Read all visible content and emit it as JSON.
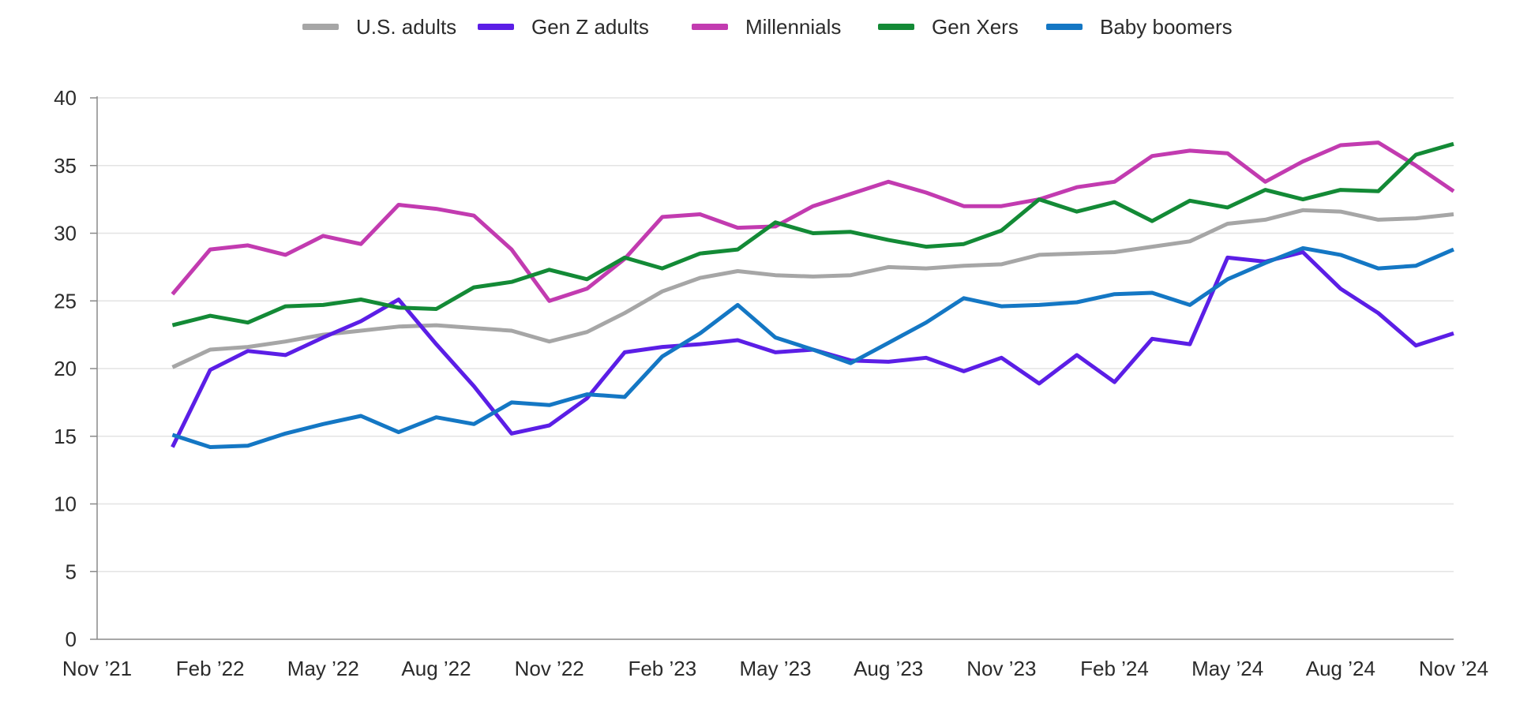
{
  "chart_data": {
    "type": "line",
    "title": "",
    "xlabel": "",
    "ylabel": "",
    "ylim": [
      0,
      40
    ],
    "yticks": [
      0,
      5,
      10,
      15,
      20,
      25,
      30,
      35,
      40
    ],
    "xlim": [
      "Nov '21",
      "Nov '24"
    ],
    "xtick_labels": [
      "Nov ’21",
      "Feb ’22",
      "May ’22",
      "Aug ’22",
      "Nov ’22",
      "Feb ’23",
      "May ’23",
      "Aug ’23",
      "Nov ’23",
      "Feb ’24",
      "May ’24",
      "Aug ’24",
      "Nov ’24"
    ],
    "grid": true,
    "legend_position": "top-center",
    "x": [
      "Jan '22",
      "Feb '22",
      "Mar '22",
      "Apr '22",
      "May '22",
      "Jun '22",
      "Jul '22",
      "Aug '22",
      "Sep '22",
      "Oct '22",
      "Nov '22",
      "Dec '22",
      "Jan '23",
      "Feb '23",
      "Mar '23",
      "Apr '23",
      "May '23",
      "Jun '23",
      "Jul '23",
      "Aug '23",
      "Sep '23",
      "Oct '23",
      "Nov '23",
      "Dec '23",
      "Jan '24",
      "Feb '24",
      "Mar '24",
      "Apr '24",
      "May '24",
      "Jun '24",
      "Jul '24",
      "Aug '24",
      "Sep '24",
      "Oct '24",
      "Nov '24"
    ],
    "series": [
      {
        "name": "U.S. adults",
        "color": "#a6a6a6",
        "values": [
          20.1,
          21.4,
          21.6,
          22.0,
          22.5,
          22.8,
          23.1,
          23.2,
          23.0,
          22.8,
          22.0,
          22.7,
          24.1,
          25.7,
          26.7,
          27.2,
          26.9,
          26.8,
          26.9,
          27.5,
          27.4,
          27.6,
          27.7,
          28.4,
          28.5,
          28.6,
          29.0,
          29.4,
          30.7,
          31.0,
          31.7,
          31.6,
          31.0,
          31.1,
          31.4
        ]
      },
      {
        "name": "Gen Z adults",
        "color": "#5b1ee6",
        "values": [
          14.2,
          19.9,
          21.3,
          21.0,
          22.3,
          23.5,
          25.1,
          21.8,
          18.7,
          15.2,
          15.8,
          17.8,
          21.2,
          21.6,
          21.8,
          22.1,
          21.2,
          21.4,
          20.6,
          20.5,
          20.8,
          19.8,
          20.8,
          18.9,
          21.0,
          19.0,
          22.2,
          21.8,
          28.2,
          27.9,
          28.6,
          25.9,
          24.1,
          21.7,
          22.6
        ]
      },
      {
        "name": "Millennials",
        "color": "#c23bb0",
        "values": [
          25.5,
          28.8,
          29.1,
          28.4,
          29.8,
          29.2,
          32.1,
          31.8,
          31.3,
          28.8,
          25.0,
          25.9,
          28.1,
          31.2,
          31.4,
          30.4,
          30.5,
          32.0,
          32.9,
          33.8,
          33.0,
          32.0,
          32.0,
          32.5,
          33.4,
          33.8,
          35.7,
          36.1,
          35.9,
          33.8,
          35.3,
          36.5,
          36.7,
          35.0,
          33.1
        ]
      },
      {
        "name": "Gen Xers",
        "color": "#138a36",
        "values": [
          23.2,
          23.9,
          23.4,
          24.6,
          24.7,
          25.1,
          24.5,
          24.4,
          26.0,
          26.4,
          27.3,
          26.6,
          28.2,
          27.4,
          28.5,
          28.8,
          30.8,
          30.0,
          30.1,
          29.5,
          29.0,
          29.2,
          30.2,
          32.5,
          31.6,
          32.3,
          30.9,
          32.4,
          31.9,
          33.2,
          32.5,
          33.2,
          33.1,
          35.8,
          36.6
        ]
      },
      {
        "name": "Baby boomers",
        "color": "#1477c4",
        "values": [
          15.1,
          14.2,
          14.3,
          15.2,
          15.9,
          16.5,
          15.3,
          16.4,
          15.9,
          17.5,
          17.3,
          18.1,
          17.9,
          20.9,
          22.6,
          24.7,
          22.3,
          21.4,
          20.4,
          21.9,
          23.4,
          25.2,
          24.6,
          24.7,
          24.9,
          25.5,
          25.6,
          24.7,
          26.6,
          27.8,
          28.9,
          28.4,
          27.4,
          27.6,
          28.8
        ]
      }
    ]
  }
}
